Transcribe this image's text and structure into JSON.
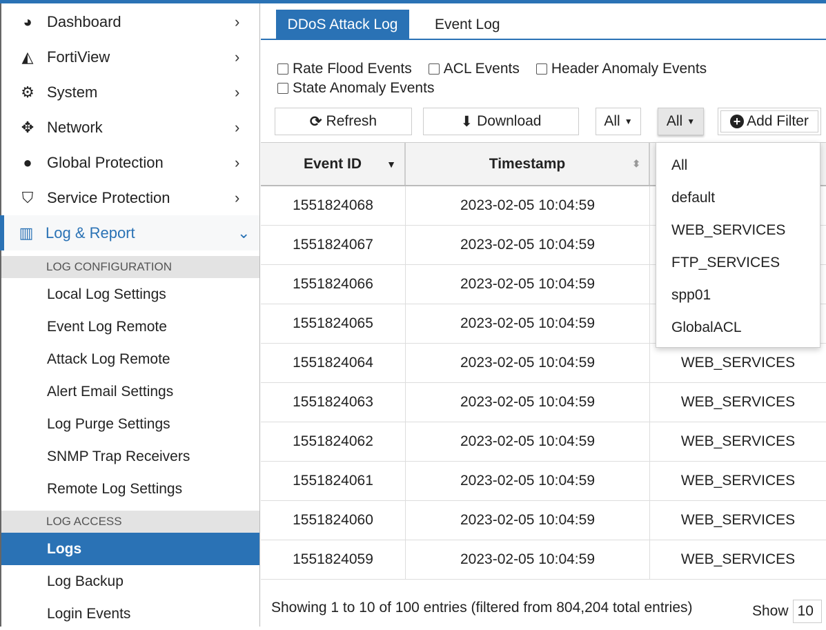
{
  "sidebar": {
    "items": [
      {
        "label": "Dashboard",
        "icon": "dashboard-icon"
      },
      {
        "label": "FortiView",
        "icon": "area-chart-icon"
      },
      {
        "label": "System",
        "icon": "gear-icon"
      },
      {
        "label": "Network",
        "icon": "arrows-icon"
      },
      {
        "label": "Global Protection",
        "icon": "globe-icon"
      },
      {
        "label": "Service Protection",
        "icon": "shield-icon"
      },
      {
        "label": "Log & Report",
        "icon": "bar-chart-icon"
      }
    ],
    "log_config_header": "LOG CONFIGURATION",
    "log_config": [
      "Local Log Settings",
      "Event Log Remote",
      "Attack Log Remote",
      "Alert Email Settings",
      "Log Purge Settings",
      "SNMP Trap Receivers",
      "Remote Log Settings"
    ],
    "log_access_header": "LOG ACCESS",
    "log_access": [
      "Logs",
      "Log Backup",
      "Login Events"
    ]
  },
  "tabs": [
    "DDoS Attack Log",
    "Event Log"
  ],
  "checkboxes": [
    "Rate Flood Events",
    "ACL Events",
    "Header Anomaly Events",
    "State Anomaly Events"
  ],
  "toolbar": {
    "refresh": "Refresh",
    "download": "Download",
    "select1": "All",
    "select2": "All",
    "add_filter": "Add Filter"
  },
  "table": {
    "headers": [
      "Event ID",
      "Timestamp",
      ""
    ],
    "rows": [
      [
        "1551824068",
        "2023-02-05 10:04:59",
        ""
      ],
      [
        "1551824067",
        "2023-02-05 10:04:59",
        ""
      ],
      [
        "1551824066",
        "2023-02-05 10:04:59",
        ""
      ],
      [
        "1551824065",
        "2023-02-05 10:04:59",
        ""
      ],
      [
        "1551824064",
        "2023-02-05 10:04:59",
        "WEB_SERVICES"
      ],
      [
        "1551824063",
        "2023-02-05 10:04:59",
        "WEB_SERVICES"
      ],
      [
        "1551824062",
        "2023-02-05 10:04:59",
        "WEB_SERVICES"
      ],
      [
        "1551824061",
        "2023-02-05 10:04:59",
        "WEB_SERVICES"
      ],
      [
        "1551824060",
        "2023-02-05 10:04:59",
        "WEB_SERVICES"
      ],
      [
        "1551824059",
        "2023-02-05 10:04:59",
        "WEB_SERVICES"
      ]
    ]
  },
  "dropdown": [
    "All",
    "default",
    "WEB_SERVICES",
    "FTP_SERVICES",
    "spp01",
    "GlobalACL"
  ],
  "footer": {
    "summary": "Showing 1 to 10 of 100 entries (filtered from 804,204 total entries)",
    "show_label": "Show",
    "page_size": "10"
  },
  "colors": {
    "accent": "#2a72b5"
  }
}
